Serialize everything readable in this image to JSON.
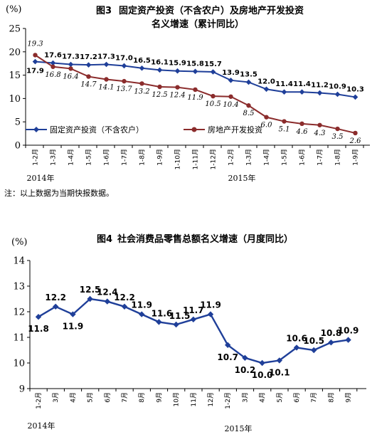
{
  "chart_data": [
    {
      "type": "line",
      "figure_label": "图3",
      "title": "固定资产投资（不含农户）及房地产开发投资",
      "subtitle": "名义增速（累计同比）",
      "ylabel": "(%)",
      "ylim": [
        0,
        25
      ],
      "yticks": [
        0,
        5,
        10,
        15,
        20,
        25
      ],
      "categories": [
        "1-2月",
        "1-3月",
        "1-4月",
        "1-5月",
        "1-6月",
        "1-7月",
        "1-8月",
        "1-9月",
        "1-10月",
        "1-11月",
        "1-12月",
        "1-2月",
        "1-3月",
        "1-4月",
        "1-5月",
        "1-6月",
        "1-7月",
        "1-8月",
        "1-9月"
      ],
      "years": [
        "2014年",
        "2015年"
      ],
      "grid": false,
      "legend_position": "bottom-left",
      "series": [
        {
          "name": "固定资产投资（不含农户）",
          "color": "#1f3f99",
          "marker": "diamond",
          "values": [
            17.9,
            17.6,
            17.3,
            17.2,
            17.3,
            17.0,
            16.5,
            16.1,
            15.9,
            15.8,
            15.7,
            13.9,
            13.5,
            12.0,
            11.4,
            11.4,
            11.2,
            10.9,
            10.3
          ]
        },
        {
          "name": "房地产开发投资",
          "color": "#8b2c2c",
          "marker": "circle",
          "values": [
            19.3,
            16.8,
            16.4,
            14.7,
            14.1,
            13.7,
            13.2,
            12.5,
            12.4,
            11.9,
            10.5,
            10.4,
            8.5,
            6.0,
            5.1,
            4.6,
            4.3,
            3.5,
            2.6
          ]
        }
      ],
      "note": "注：以上数据为当期快报数据。"
    },
    {
      "type": "line",
      "figure_label": "图4",
      "title": "社会消费品零售总额名义增速（月度同比）",
      "ylabel": "(%)",
      "ylim": [
        9,
        14
      ],
      "yticks": [
        9,
        10,
        11,
        12,
        13,
        14
      ],
      "categories": [
        "1-2月",
        "3月",
        "4月",
        "5月",
        "6月",
        "7月",
        "8月",
        "9月",
        "10月",
        "11月",
        "12月",
        "1-2月",
        "3月",
        "4月",
        "5月",
        "6月",
        "7月",
        "8月",
        "9月"
      ],
      "years": [
        "2014年",
        "2015年"
      ],
      "grid": false,
      "series": [
        {
          "name": "",
          "color": "#1f3f99",
          "marker": "diamond",
          "values": [
            11.8,
            12.2,
            11.9,
            12.5,
            12.4,
            12.2,
            11.9,
            11.6,
            11.5,
            11.7,
            11.9,
            10.7,
            10.2,
            10.0,
            10.1,
            10.6,
            10.5,
            10.8,
            10.9
          ]
        }
      ]
    }
  ]
}
